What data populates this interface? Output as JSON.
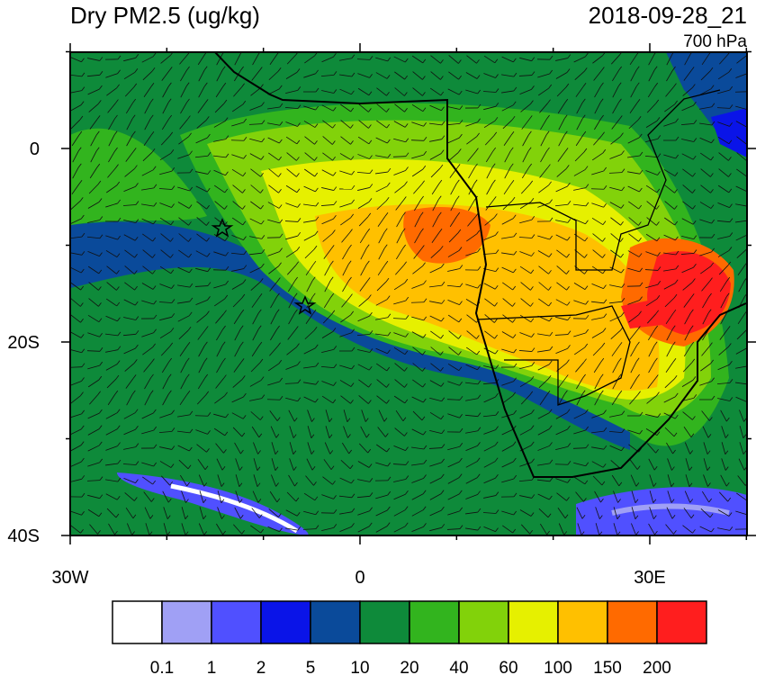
{
  "title": "Dry PM2.5 (ug/kg)",
  "time": "2018-09-28_21",
  "level": "700 hPa",
  "lat_labels": [
    "0",
    "20S",
    "40S"
  ],
  "lon_labels": [
    "30W",
    "0",
    "30E"
  ],
  "colorbar": {
    "colors": [
      "#ffffff",
      "#a0a0f5",
      "#5050ff",
      "#0a14e8",
      "#0a4a9a",
      "#0e8a3a",
      "#32b41e",
      "#82d20a",
      "#e6f000",
      "#ffc000",
      "#ff6a00",
      "#ff1e1e"
    ],
    "labels": [
      "0.1",
      "1",
      "2",
      "5",
      "10",
      "20",
      "40",
      "60",
      "100",
      "150",
      "200"
    ]
  }
}
